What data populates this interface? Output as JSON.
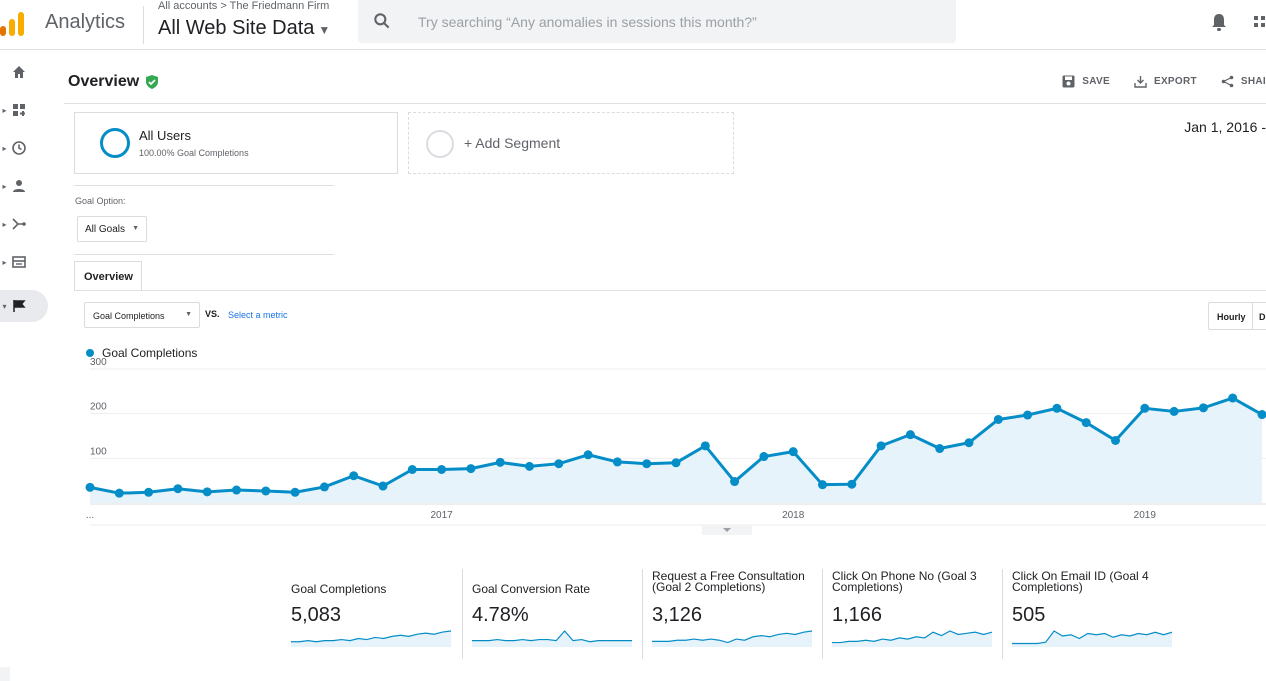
{
  "app": {
    "name": "Analytics"
  },
  "header": {
    "breadcrumb": "All accounts > The Friedmann Firm",
    "property": "All Web Site Data",
    "search_placeholder": "Try searching “Any anomalies in sessions this month?”"
  },
  "sidebar": [
    {
      "icon": "home-icon",
      "active": false
    },
    {
      "icon": "customization-icon",
      "active": false
    },
    {
      "icon": "realtime-clock-icon",
      "active": false
    },
    {
      "icon": "audience-person-icon",
      "active": false
    },
    {
      "icon": "acquisition-icon",
      "active": false
    },
    {
      "icon": "behavior-icon",
      "active": false
    },
    {
      "icon": "conversions-flag-icon",
      "active": true
    }
  ],
  "page": {
    "title": "Overview",
    "actions": {
      "save": "SAVE",
      "export": "EXPORT",
      "share": "SHAI"
    },
    "date_range": "Jan 1, 2016 -"
  },
  "segments": [
    {
      "name": "All Users",
      "sub": "100.00% Goal Completions"
    },
    {
      "name": "+ Add Segment"
    }
  ],
  "goal_option": {
    "label": "Goal Option:",
    "value": "All Goals"
  },
  "tab": "Overview",
  "controls": {
    "metric": "Goal Completions",
    "vs": "VS.",
    "select_metric": "Select a metric",
    "granularity": [
      "Hourly",
      "D"
    ]
  },
  "colors": {
    "series": "#058dc7",
    "fill": "#e6f3fa",
    "accent": "#1a73e8",
    "verified": "#34a853"
  },
  "chart_data": {
    "type": "line",
    "series": [
      {
        "name": "Goal Completions",
        "values": [
          35,
          22,
          24,
          32,
          25,
          29,
          27,
          24,
          36,
          61,
          38,
          75,
          75,
          77,
          91,
          82,
          88,
          108,
          92,
          88,
          90,
          128,
          48,
          104,
          115,
          41,
          42,
          128,
          153,
          122,
          135,
          187,
          197,
          212,
          180,
          140,
          212,
          205,
          213,
          235,
          198
        ]
      }
    ],
    "ylim": [
      0,
      300
    ],
    "yticks": [
      100,
      200,
      300
    ],
    "xticks": [
      {
        "label": "...",
        "index": 0
      },
      {
        "label": "2017",
        "index": 12
      },
      {
        "label": "2018",
        "index": 24
      },
      {
        "label": "2019",
        "index": 36
      }
    ],
    "grid": true,
    "legend": "top-left"
  },
  "scorecards": [
    {
      "label": "Goal Completions",
      "value": "5,083",
      "spark": [
        4,
        4,
        5,
        4,
        5,
        5,
        6,
        5,
        7,
        6,
        8,
        7,
        9,
        10,
        9,
        11,
        12,
        11,
        13,
        14
      ]
    },
    {
      "label": "Goal Conversion Rate",
      "value": "4.78%",
      "spark": [
        5,
        5,
        5,
        6,
        5,
        5,
        6,
        5,
        6,
        6,
        5,
        14,
        5,
        6,
        4,
        5,
        5,
        5,
        5,
        5
      ]
    },
    {
      "label": "Request a Free Consultation (Goal 2 Completions)",
      "value": "3,126",
      "spark": [
        4,
        4,
        4,
        5,
        5,
        6,
        5,
        6,
        5,
        3,
        6,
        5,
        8,
        9,
        8,
        10,
        11,
        10,
        12,
        13
      ]
    },
    {
      "label": "Click On Phone No (Goal 3 Completions)",
      "value": "1,166",
      "spark": [
        3,
        3,
        4,
        4,
        5,
        4,
        6,
        5,
        7,
        6,
        8,
        7,
        12,
        9,
        13,
        10,
        11,
        12,
        10,
        12
      ]
    },
    {
      "label": "Click On Email ID (Goal 4 Completions)",
      "value": "505",
      "spark": [
        2,
        2,
        2,
        2,
        3,
        12,
        8,
        9,
        6,
        10,
        9,
        10,
        7,
        9,
        8,
        10,
        9,
        11,
        9,
        11
      ]
    }
  ]
}
